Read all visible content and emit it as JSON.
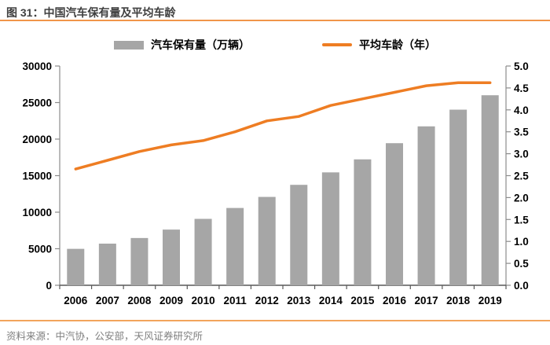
{
  "title": "图 31：中国汽车保有量及平均车龄",
  "source": "资料来源：中汽协，公安部，天风证券研究所",
  "legend": [
    {
      "label": "汽车保有量（万辆）",
      "swatch": "bar-swatch-icon",
      "color": "#a6a6a6"
    },
    {
      "label": "平均车龄（年）",
      "swatch": "line-swatch-icon",
      "color": "#ee7d23"
    }
  ],
  "colors": {
    "bar": "#a6a6a6",
    "line": "#ee7d23",
    "title_text": "#3f3f3f",
    "rule_orange": "#f0954a",
    "axis_line": "#8c8c8c",
    "x_axis_line": "#595959",
    "tick_label": "#000000",
    "source_text": "#7f7f7f"
  },
  "chart_data": {
    "type": "bar",
    "subtype": "bar-line-combo",
    "title": "中国汽车保有量及平均车龄",
    "categories": [
      "2006",
      "2007",
      "2008",
      "2009",
      "2010",
      "2011",
      "2012",
      "2013",
      "2014",
      "2015",
      "2016",
      "2017",
      "2018",
      "2019"
    ],
    "series": [
      {
        "name": "汽车保有量（万辆）",
        "type": "bar",
        "axis": "left",
        "color": "#a6a6a6",
        "values": [
          4985,
          5697,
          6467,
          7619,
          9086,
          10578,
          12089,
          13741,
          15447,
          17228,
          19440,
          21743,
          24028,
          26000
        ]
      },
      {
        "name": "平均车龄（年）",
        "type": "line",
        "axis": "right",
        "color": "#ee7d23",
        "values": [
          2.65,
          2.85,
          3.05,
          3.2,
          3.3,
          3.5,
          3.75,
          3.85,
          4.1,
          4.25,
          4.4,
          4.55,
          4.62,
          4.62
        ]
      }
    ],
    "left_axis": {
      "min": 0,
      "max": 30000,
      "step": 5000,
      "ticks": [
        "0",
        "5000",
        "10000",
        "15000",
        "20000",
        "25000",
        "30000"
      ]
    },
    "right_axis": {
      "min": 0,
      "max": 5,
      "step": 0.5,
      "ticks": [
        "0.0",
        "0.5",
        "1.0",
        "1.5",
        "2.0",
        "2.5",
        "3.0",
        "3.5",
        "4.0",
        "4.5",
        "5.0"
      ]
    },
    "grid": false,
    "legend_position": "top"
  }
}
